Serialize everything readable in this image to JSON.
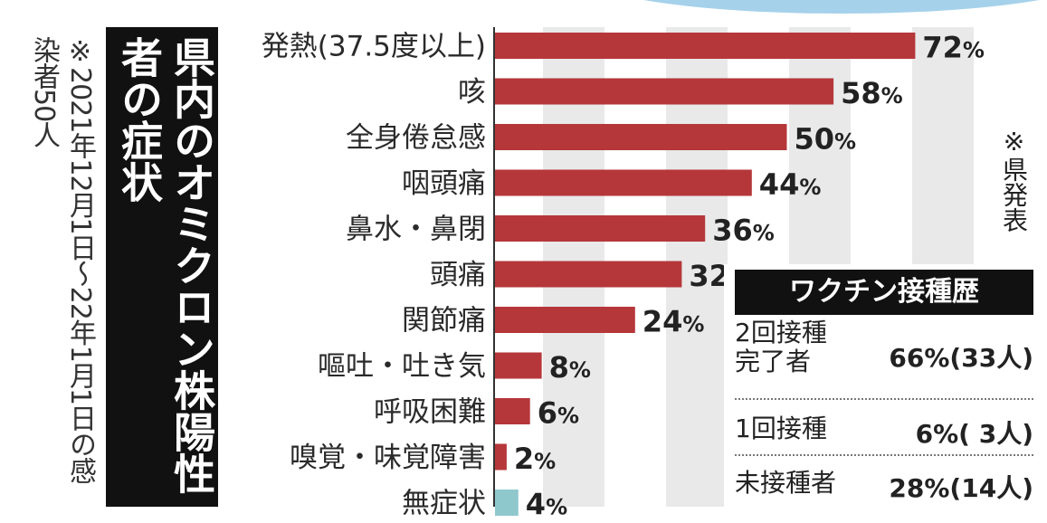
{
  "title": "県内のオミクロン株陽性者の症状",
  "note": "※2021年12月1日〜22年1月1日の感染者50人",
  "source": "※県発表",
  "chart_data": {
    "type": "bar",
    "orientation": "horizontal",
    "categories": [
      "発熱(37.5度以上)",
      "咳",
      "全身倦怠感",
      "咽頭痛",
      "鼻水・鼻閉",
      "頭痛",
      "関節痛",
      "嘔吐・吐き気",
      "呼吸困難",
      "嗅覚・味覚障害",
      "無症状"
    ],
    "values": [
      72,
      58,
      50,
      44,
      36,
      32,
      24,
      8,
      6,
      2,
      4
    ],
    "unit": "%",
    "bar_colors": [
      "#b5373a",
      "#b5373a",
      "#b5373a",
      "#b5373a",
      "#b5373a",
      "#b5373a",
      "#b5373a",
      "#b5373a",
      "#b5373a",
      "#b5373a",
      "#8fc8cc"
    ],
    "xlim": [
      0,
      80
    ],
    "grid": "vertical stripes"
  },
  "vaccination": {
    "title": "ワクチン接種歴",
    "rows": [
      {
        "label": "2回接種\n完了者",
        "value": "66%(33人)"
      },
      {
        "label": "1回接種",
        "value": "6%( 3人)"
      },
      {
        "label": "未接種者",
        "value": "28%(14人)"
      }
    ]
  }
}
